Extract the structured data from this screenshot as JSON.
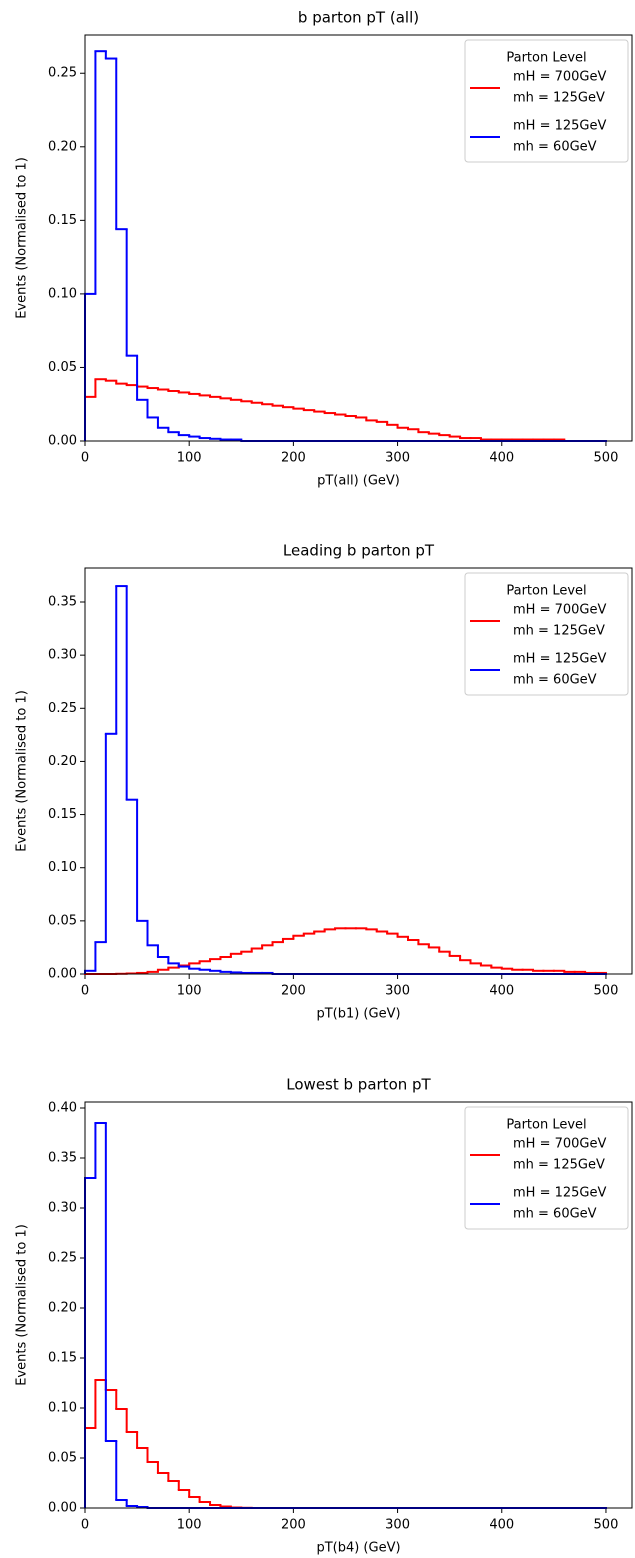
{
  "chart_data": [
    {
      "type": "histogram",
      "title": "b parton pT (all)",
      "x_label": "pT(all) (GeV)",
      "y_label": "Events (Normalised to 1)",
      "xlim": [
        0,
        525
      ],
      "ylim": [
        0,
        0.276
      ],
      "xticks": [
        0,
        100,
        200,
        300,
        400,
        500
      ],
      "yticks": [
        {
          "value": 0,
          "label": "0.00"
        },
        {
          "value": 0.05,
          "label": "0.05"
        },
        {
          "value": 0.1,
          "label": "0.10"
        },
        {
          "value": 0.15,
          "label": "0.15"
        },
        {
          "value": 0.2,
          "label": "0.20"
        },
        {
          "value": 0.25,
          "label": "0.25"
        }
      ],
      "legend_title": "Parton Level",
      "legend_position": "upper right",
      "bins": [
        0,
        10,
        20,
        30,
        40,
        50,
        60,
        70,
        80,
        90,
        100,
        110,
        120,
        130,
        140,
        150,
        160,
        170,
        180,
        190,
        200,
        210,
        220,
        230,
        240,
        250,
        260,
        270,
        280,
        290,
        300,
        310,
        320,
        330,
        340,
        350,
        360,
        370,
        380,
        390,
        400,
        410,
        420,
        430,
        440,
        450,
        460,
        470,
        480,
        490,
        500
      ],
      "series": [
        {
          "name": [
            "mH = 700GeV",
            "mh = 125GeV"
          ],
          "color": "#ff0000",
          "values": [
            0.03,
            0.042,
            0.041,
            0.039,
            0.038,
            0.037,
            0.036,
            0.035,
            0.034,
            0.033,
            0.032,
            0.031,
            0.03,
            0.029,
            0.028,
            0.027,
            0.026,
            0.025,
            0.024,
            0.023,
            0.022,
            0.021,
            0.02,
            0.019,
            0.018,
            0.017,
            0.016,
            0.014,
            0.013,
            0.011,
            0.009,
            0.008,
            0.006,
            0.005,
            0.004,
            0.003,
            0.002,
            0.002,
            0.001,
            0.001,
            0.001,
            0.001,
            0.001,
            0.001,
            0.001,
            0.001,
            0,
            0,
            0,
            0
          ]
        },
        {
          "name": [
            "mH = 125GeV",
            "mh = 60GeV"
          ],
          "color": "#0000ff",
          "values": [
            0.1,
            0.265,
            0.26,
            0.144,
            0.058,
            0.028,
            0.016,
            0.009,
            0.006,
            0.004,
            0.003,
            0.002,
            0.0015,
            0.001,
            0.001,
            0,
            0,
            0,
            0,
            0,
            0,
            0,
            0,
            0,
            0,
            0,
            0,
            0,
            0,
            0,
            0,
            0,
            0,
            0,
            0,
            0,
            0,
            0,
            0,
            0,
            0,
            0,
            0,
            0,
            0,
            0,
            0,
            0,
            0,
            0
          ]
        }
      ]
    },
    {
      "type": "histogram",
      "title": "Leading b parton pT",
      "x_label": "pT(b1) (GeV)",
      "y_label": "Events (Normalised to 1)",
      "xlim": [
        0,
        525
      ],
      "ylim": [
        0,
        0.382
      ],
      "xticks": [
        0,
        100,
        200,
        300,
        400,
        500
      ],
      "yticks": [
        {
          "value": 0,
          "label": "0.00"
        },
        {
          "value": 0.05,
          "label": "0.05"
        },
        {
          "value": 0.1,
          "label": "0.10"
        },
        {
          "value": 0.15,
          "label": "0.15"
        },
        {
          "value": 0.2,
          "label": "0.20"
        },
        {
          "value": 0.25,
          "label": "0.25"
        },
        {
          "value": 0.3,
          "label": "0.30"
        },
        {
          "value": 0.35,
          "label": "0.35"
        }
      ],
      "legend_title": "Parton Level",
      "legend_position": "upper right",
      "bins": [
        0,
        10,
        20,
        30,
        40,
        50,
        60,
        70,
        80,
        90,
        100,
        110,
        120,
        130,
        140,
        150,
        160,
        170,
        180,
        190,
        200,
        210,
        220,
        230,
        240,
        250,
        260,
        270,
        280,
        290,
        300,
        310,
        320,
        330,
        340,
        350,
        360,
        370,
        380,
        390,
        400,
        410,
        420,
        430,
        440,
        450,
        460,
        470,
        480,
        490,
        500
      ],
      "series": [
        {
          "name": [
            "mH = 700GeV",
            "mh = 125GeV"
          ],
          "color": "#ff0000",
          "values": [
            0,
            0,
            0,
            0.0002,
            0.0005,
            0.001,
            0.002,
            0.004,
            0.006,
            0.008,
            0.01,
            0.012,
            0.014,
            0.016,
            0.019,
            0.021,
            0.024,
            0.027,
            0.03,
            0.033,
            0.036,
            0.038,
            0.04,
            0.042,
            0.043,
            0.043,
            0.043,
            0.042,
            0.04,
            0.038,
            0.035,
            0.032,
            0.028,
            0.025,
            0.021,
            0.017,
            0.013,
            0.01,
            0.008,
            0.006,
            0.005,
            0.004,
            0.004,
            0.003,
            0.003,
            0.003,
            0.002,
            0.002,
            0.001,
            0.001
          ]
        },
        {
          "name": [
            "mH = 125GeV",
            "mh = 60GeV"
          ],
          "color": "#0000ff",
          "values": [
            0.003,
            0.03,
            0.226,
            0.365,
            0.164,
            0.05,
            0.027,
            0.016,
            0.01,
            0.007,
            0.005,
            0.004,
            0.003,
            0.002,
            0.0015,
            0.001,
            0.001,
            0.001,
            0,
            0,
            0,
            0,
            0,
            0,
            0,
            0,
            0,
            0,
            0,
            0,
            0,
            0,
            0,
            0,
            0,
            0,
            0,
            0,
            0,
            0,
            0,
            0,
            0,
            0,
            0,
            0,
            0,
            0,
            0,
            0
          ]
        }
      ]
    },
    {
      "type": "histogram",
      "title": "Lowest b parton pT",
      "x_label": "pT(b4) (GeV)",
      "y_label": "Events (Normalised to 1)",
      "xlim": [
        0,
        525
      ],
      "ylim": [
        0,
        0.406
      ],
      "xticks": [
        0,
        100,
        200,
        300,
        400,
        500
      ],
      "yticks": [
        {
          "value": 0,
          "label": "0.00"
        },
        {
          "value": 0.05,
          "label": "0.05"
        },
        {
          "value": 0.1,
          "label": "0.10"
        },
        {
          "value": 0.15,
          "label": "0.15"
        },
        {
          "value": 0.2,
          "label": "0.20"
        },
        {
          "value": 0.25,
          "label": "0.25"
        },
        {
          "value": 0.3,
          "label": "0.30"
        },
        {
          "value": 0.35,
          "label": "0.35"
        },
        {
          "value": 0.4,
          "label": "0.40"
        }
      ],
      "legend_title": "Parton Level",
      "legend_position": "upper right",
      "bins": [
        0,
        10,
        20,
        30,
        40,
        50,
        60,
        70,
        80,
        90,
        100,
        110,
        120,
        130,
        140,
        150,
        160,
        170,
        180,
        190,
        200,
        210,
        220,
        230,
        240,
        250,
        260,
        270,
        280,
        290,
        300,
        310,
        320,
        330,
        340,
        350,
        360,
        370,
        380,
        390,
        400,
        410,
        420,
        430,
        440,
        450,
        460,
        470,
        480,
        490,
        500
      ],
      "series": [
        {
          "name": [
            "mH = 700GeV",
            "mh = 125GeV"
          ],
          "color": "#ff0000",
          "values": [
            0.08,
            0.128,
            0.118,
            0.099,
            0.076,
            0.06,
            0.046,
            0.035,
            0.027,
            0.018,
            0.011,
            0.006,
            0.003,
            0.0015,
            0.0005,
            0.0002,
            0,
            0,
            0,
            0,
            0,
            0,
            0,
            0,
            0,
            0,
            0,
            0,
            0,
            0,
            0,
            0,
            0,
            0,
            0,
            0,
            0,
            0,
            0,
            0,
            0,
            0,
            0,
            0,
            0,
            0,
            0,
            0,
            0,
            0
          ]
        },
        {
          "name": [
            "mH = 125GeV",
            "mh = 60GeV"
          ],
          "color": "#0000ff",
          "values": [
            0.33,
            0.385,
            0.067,
            0.008,
            0.002,
            0.001,
            0,
            0,
            0,
            0,
            0,
            0,
            0,
            0,
            0,
            0,
            0,
            0,
            0,
            0,
            0,
            0,
            0,
            0,
            0,
            0,
            0,
            0,
            0,
            0,
            0,
            0,
            0,
            0,
            0,
            0,
            0,
            0,
            0,
            0,
            0,
            0,
            0,
            0,
            0,
            0,
            0,
            0,
            0,
            0
          ]
        }
      ]
    }
  ]
}
